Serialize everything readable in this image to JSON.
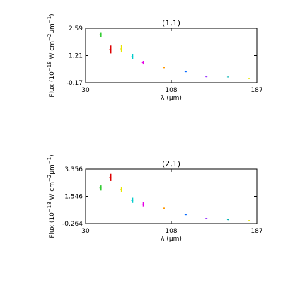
{
  "chart_data": [
    {
      "type": "scatter",
      "title": "(1,1)",
      "xlabel": "λ (μm)",
      "ylabel_main": "Flux (10",
      "ylabel_sup1": "−18",
      "ylabel_mid": " W cm",
      "ylabel_sup2": "−2",
      "ylabel_mid2": "μm",
      "ylabel_sup3": "−1",
      "ylabel_end": ")",
      "xlim": [
        30,
        187
      ],
      "ylim": [
        -0.17,
        2.59
      ],
      "xticks": [
        "30",
        "108",
        "187"
      ],
      "yticks": [
        "2.59",
        "1.21",
        "-0.17"
      ],
      "points": [
        {
          "x": 44,
          "y": 2.26,
          "dy": 0.13,
          "color": "#33cc33"
        },
        {
          "x": 53,
          "y": 1.52,
          "dy": 0.2,
          "color": "#dd0000"
        },
        {
          "x": 63,
          "y": 1.55,
          "dy": 0.18,
          "color": "#e6e600"
        },
        {
          "x": 73,
          "y": 1.15,
          "dy": 0.12,
          "color": "#00cccc"
        },
        {
          "x": 83,
          "y": 0.85,
          "dy": 0.09,
          "color": "#e600e6"
        },
        {
          "x": 102,
          "y": 0.6,
          "dy": 0.03,
          "color": "#ff9900"
        },
        {
          "x": 122,
          "y": 0.4,
          "dy": 0.04,
          "color": "#0066ff"
        },
        {
          "x": 141,
          "y": 0.13,
          "dy": 0.02,
          "color": "#9933ff"
        },
        {
          "x": 161,
          "y": 0.12,
          "dy": 0.02,
          "color": "#00b3b3"
        },
        {
          "x": 180,
          "y": 0.05,
          "dy": 0.02,
          "color": "#e6e600"
        }
      ]
    },
    {
      "type": "scatter",
      "title": "(2,1)",
      "xlabel": "λ (μm)",
      "ylabel_main": "Flux (10",
      "ylabel_sup1": "−18",
      "ylabel_mid": " W cm",
      "ylabel_sup2": "−2",
      "ylabel_mid2": "μm",
      "ylabel_sup3": "−1",
      "ylabel_end": ")",
      "xlim": [
        30,
        187
      ],
      "ylim": [
        -0.264,
        3.356
      ],
      "xticks": [
        "30",
        "108",
        "187"
      ],
      "yticks": [
        "3.356",
        "1.546",
        "-0.264"
      ],
      "points": [
        {
          "x": 44,
          "y": 2.1,
          "dy": 0.17,
          "color": "#33cc33"
        },
        {
          "x": 53,
          "y": 2.8,
          "dy": 0.24,
          "color": "#dd0000"
        },
        {
          "x": 63,
          "y": 2.0,
          "dy": 0.17,
          "color": "#e6e600"
        },
        {
          "x": 73,
          "y": 1.28,
          "dy": 0.17,
          "color": "#00cccc"
        },
        {
          "x": 83,
          "y": 1.02,
          "dy": 0.14,
          "color": "#e600e6"
        },
        {
          "x": 102,
          "y": 0.76,
          "dy": 0.04,
          "color": "#ff9900"
        },
        {
          "x": 122,
          "y": 0.34,
          "dy": 0.05,
          "color": "#0066ff"
        },
        {
          "x": 141,
          "y": 0.08,
          "dy": 0.03,
          "color": "#9933ff"
        },
        {
          "x": 161,
          "y": -0.01,
          "dy": 0.03,
          "color": "#00b3b3"
        },
        {
          "x": 180,
          "y": -0.07,
          "dy": 0.03,
          "color": "#e6e600"
        }
      ]
    }
  ]
}
